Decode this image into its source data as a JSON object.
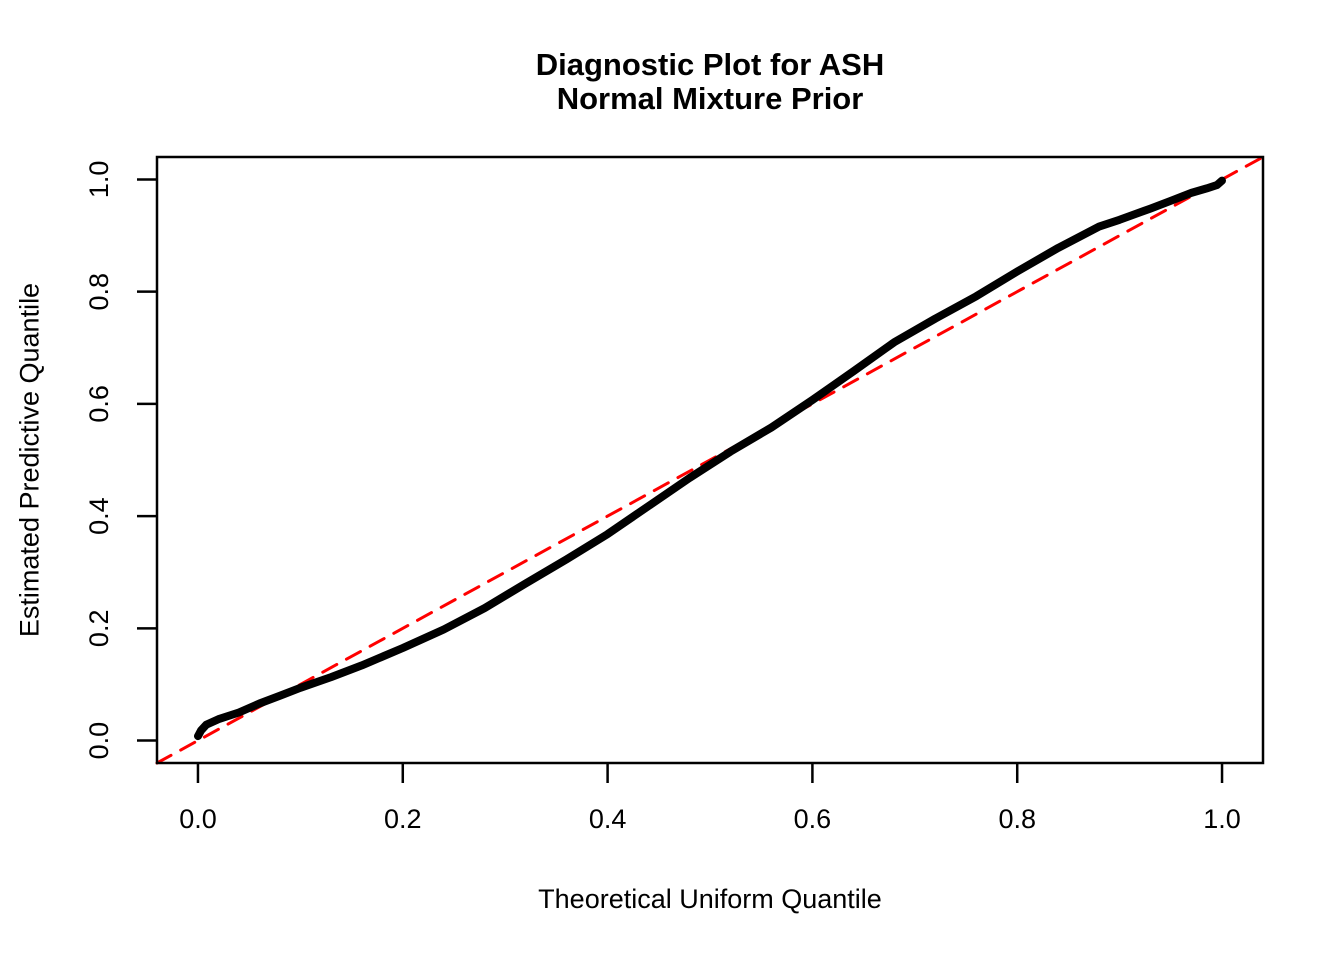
{
  "chart_data": {
    "type": "line",
    "title": "Diagnostic Plot for ASH",
    "subtitle": "Normal Mixture Prior",
    "xlabel": "Theoretical Uniform Quantile",
    "ylabel": "Estimated Predictive Quantile",
    "xlim": [
      -0.04,
      1.04
    ],
    "ylim": [
      -0.04,
      1.04
    ],
    "grid": false,
    "legend": "none",
    "background_color": "#ffffff",
    "axis_color": "#000000",
    "x_ticks": [
      0.0,
      0.2,
      0.4,
      0.6,
      0.8,
      1.0
    ],
    "x_tick_labels": [
      "0.0",
      "0.2",
      "0.4",
      "0.6",
      "0.8",
      "1.0"
    ],
    "y_ticks": [
      0.0,
      0.2,
      0.4,
      0.6,
      0.8,
      1.0
    ],
    "y_tick_labels": [
      "0.0",
      "0.2",
      "0.4",
      "0.6",
      "0.8",
      "1.0"
    ],
    "series": [
      {
        "name": "reference-diagonal",
        "color": "#ff0000",
        "style": "dashed",
        "stroke_width": 3,
        "points": [
          [
            -0.04,
            -0.04
          ],
          [
            1.04,
            1.04
          ]
        ]
      },
      {
        "name": "estimated-predictive-quantile-curve",
        "color": "#000000",
        "style": "solid",
        "stroke_width": 8,
        "points": [
          [
            0.0,
            0.008
          ],
          [
            0.003,
            0.018
          ],
          [
            0.008,
            0.028
          ],
          [
            0.02,
            0.038
          ],
          [
            0.04,
            0.05
          ],
          [
            0.06,
            0.066
          ],
          [
            0.08,
            0.08
          ],
          [
            0.1,
            0.094
          ],
          [
            0.13,
            0.113
          ],
          [
            0.16,
            0.134
          ],
          [
            0.2,
            0.165
          ],
          [
            0.24,
            0.198
          ],
          [
            0.28,
            0.236
          ],
          [
            0.32,
            0.28
          ],
          [
            0.36,
            0.323
          ],
          [
            0.4,
            0.368
          ],
          [
            0.44,
            0.418
          ],
          [
            0.48,
            0.468
          ],
          [
            0.52,
            0.515
          ],
          [
            0.56,
            0.558
          ],
          [
            0.6,
            0.607
          ],
          [
            0.64,
            0.658
          ],
          [
            0.68,
            0.71
          ],
          [
            0.72,
            0.752
          ],
          [
            0.76,
            0.792
          ],
          [
            0.8,
            0.836
          ],
          [
            0.84,
            0.878
          ],
          [
            0.88,
            0.916
          ],
          [
            0.9,
            0.928
          ],
          [
            0.93,
            0.948
          ],
          [
            0.95,
            0.962
          ],
          [
            0.97,
            0.976
          ],
          [
            0.985,
            0.984
          ],
          [
            0.995,
            0.99
          ],
          [
            1.0,
            0.998
          ]
        ]
      }
    ]
  }
}
